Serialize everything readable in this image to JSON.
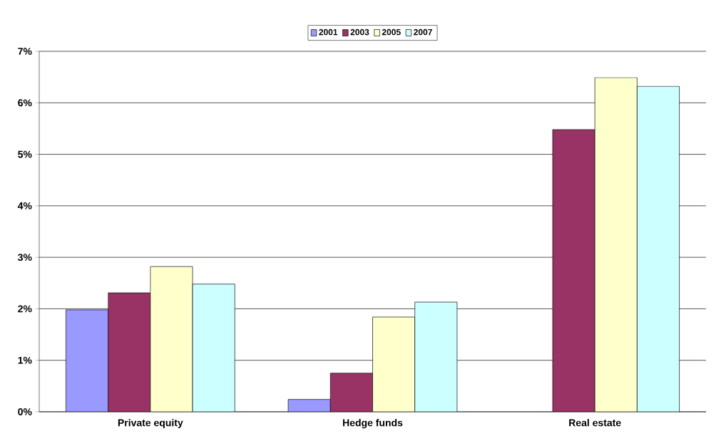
{
  "chart_data": {
    "type": "bar",
    "categories": [
      "Private equity",
      "Hedge funds",
      "Real estate"
    ],
    "series": [
      {
        "name": "2001",
        "color": "#9999ff",
        "values": [
          1.98,
          0.24,
          null
        ]
      },
      {
        "name": "2003",
        "color": "#993366",
        "values": [
          2.31,
          0.75,
          5.48
        ]
      },
      {
        "name": "2005",
        "color": "#ffffcc",
        "values": [
          2.82,
          1.84,
          6.49
        ]
      },
      {
        "name": "2007",
        "color": "#ccffff",
        "values": [
          2.48,
          2.13,
          6.32
        ]
      }
    ],
    "ylim": [
      0,
      7
    ],
    "yticks": [
      {
        "value": 0,
        "label": "0%"
      },
      {
        "value": 1,
        "label": "1%"
      },
      {
        "value": 2,
        "label": "2%"
      },
      {
        "value": 3,
        "label": "3%"
      },
      {
        "value": 4,
        "label": "4%"
      },
      {
        "value": 5,
        "label": "5%"
      },
      {
        "value": 6,
        "label": "6%"
      },
      {
        "value": 7,
        "label": "7%"
      }
    ],
    "grid": "y",
    "legend": "top"
  }
}
